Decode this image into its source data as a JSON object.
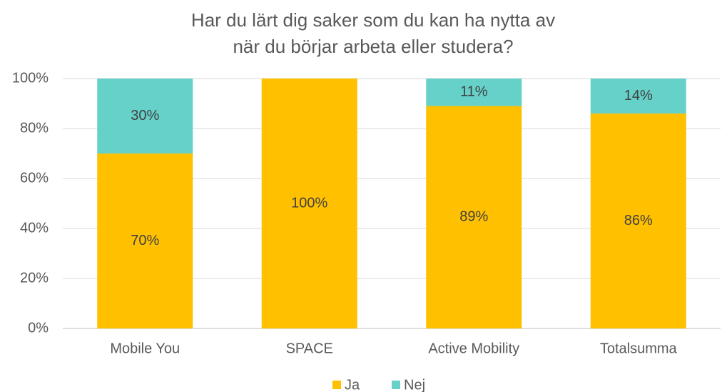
{
  "chart_data": {
    "type": "stacked_bar",
    "title": [
      "Har du lärt dig saker som du kan ha nytta av",
      "när du börjar arbeta eller studera?"
    ],
    "categories": [
      "Mobile You",
      "SPACE",
      "Active Mobility",
      "Totalsumma"
    ],
    "series": [
      {
        "name": "Ja",
        "color": "#ffc000",
        "values": [
          70,
          100,
          89,
          86
        ],
        "value_labels": [
          "70%",
          "100%",
          "89%",
          "86%"
        ]
      },
      {
        "name": "Nej",
        "color": "#66d1c9",
        "values": [
          30,
          0,
          11,
          14
        ],
        "value_labels": [
          "30%",
          null,
          "11%",
          "14%"
        ]
      }
    ],
    "ylim": [
      0,
      100
    ],
    "yticks": [
      {
        "value": 0,
        "label": "0%"
      },
      {
        "value": 20,
        "label": "20%"
      },
      {
        "value": 40,
        "label": "40%"
      },
      {
        "value": 60,
        "label": "60%"
      },
      {
        "value": 80,
        "label": "80%"
      },
      {
        "value": 100,
        "label": "100%"
      }
    ],
    "grid": true,
    "legend": "bottom"
  }
}
